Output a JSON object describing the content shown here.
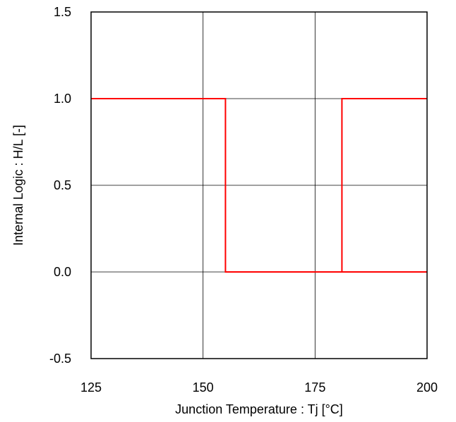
{
  "chart_data": {
    "type": "line",
    "title": "",
    "xlabel": "Junction Temperature : Tj [°C]",
    "ylabel": "Internal Logic : H/L [-]",
    "xlim": [
      125,
      200
    ],
    "ylim": [
      -0.5,
      1.5
    ],
    "x_ticks": [
      125,
      150,
      175,
      200
    ],
    "x_tick_labels": [
      "125",
      "150",
      "175",
      "200"
    ],
    "y_ticks": [
      -0.5,
      0.0,
      0.5,
      1.0,
      1.5
    ],
    "y_tick_labels": [
      "-0.5",
      "0.0",
      "0.5",
      "1.0",
      "1.5"
    ],
    "grid": true,
    "legend": "none",
    "series": [
      {
        "color": "#ff0000",
        "x": [
          125,
          155,
          155,
          181,
          181,
          200
        ],
        "y": [
          1.0,
          1.0,
          0.0,
          0.0,
          1.0,
          1.0
        ]
      },
      {
        "color": "#ff0000",
        "x": [
          155,
          200
        ],
        "y": [
          0.0,
          0.0
        ]
      }
    ]
  }
}
